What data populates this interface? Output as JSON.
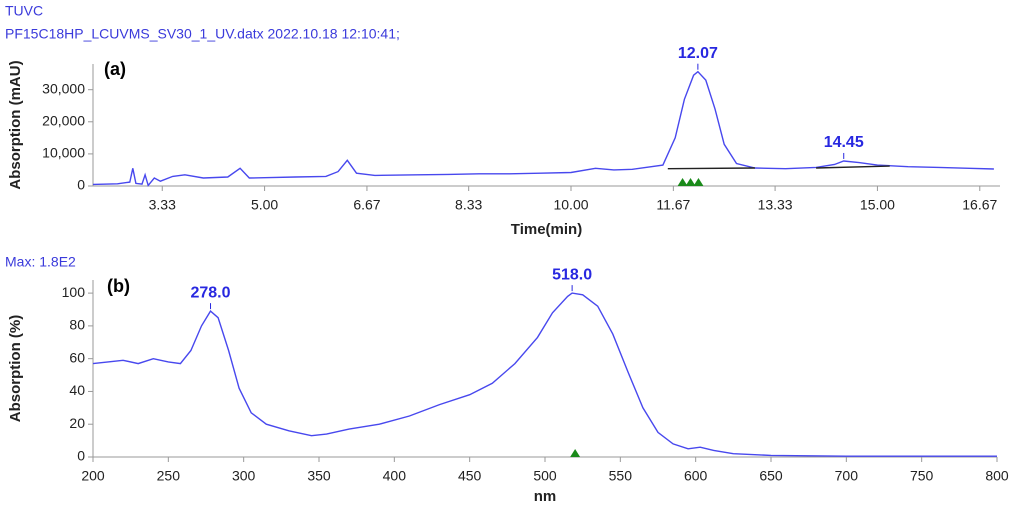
{
  "chart_data": [
    {
      "type": "line",
      "header_lines": [
        "TUVC",
        "PF15C18HP_LCUVMS_SV30_1_UV.datx 2022.10.18 12:10:41;"
      ],
      "panel_label": "(a)",
      "xlabel": "Time(min)",
      "ylabel": "Absorption (mAU)",
      "xlim": [
        2.2,
        17.0
      ],
      "ylim": [
        0,
        38000
      ],
      "xticks": [
        3.33,
        {
          "value": 5,
          "label": "5.00"
        },
        6.67,
        8.33,
        {
          "value": 10,
          "label": "10.00"
        },
        11.67,
        13.33,
        {
          "value": 15,
          "label": "15.00"
        },
        16.67
      ],
      "yticks": [
        0,
        {
          "value": 10000,
          "label": "10,000"
        },
        {
          "value": 20000,
          "label": "20,000"
        },
        {
          "value": 30000,
          "label": "30,000"
        }
      ],
      "series": [
        {
          "color": "#4848ee",
          "x": [
            2.2,
            2.6,
            2.8,
            2.85,
            2.9,
            3.0,
            3.05,
            3.1,
            3.2,
            3.3,
            3.5,
            3.7,
            4.0,
            4.4,
            4.6,
            4.75,
            5.0,
            5.5,
            6.0,
            6.2,
            6.35,
            6.5,
            6.8,
            7.5,
            8.0,
            8.5,
            9.0,
            9.5,
            10.0,
            10.4,
            10.7,
            11.0,
            11.5,
            11.7,
            11.85,
            12.0,
            12.07,
            12.2,
            12.35,
            12.5,
            12.7,
            13.0,
            13.5,
            14.0,
            14.3,
            14.45,
            14.7,
            15.0,
            15.5,
            16.0,
            16.5,
            16.9
          ],
          "values": [
            500,
            700,
            1200,
            5500,
            800,
            600,
            3500,
            200,
            2500,
            1500,
            3000,
            3500,
            2500,
            2800,
            5500,
            2500,
            2600,
            2800,
            3000,
            4500,
            8000,
            4000,
            3300,
            3500,
            3600,
            3800,
            3800,
            4000,
            4200,
            5500,
            5000,
            5200,
            6500,
            15000,
            27000,
            34500,
            35600,
            33000,
            24000,
            13000,
            7000,
            5600,
            5400,
            5800,
            6700,
            7800,
            7300,
            6500,
            6000,
            5800,
            5500,
            5300
          ]
        },
        {
          "color": "#222222",
          "x": [
            11.58,
            13.0
          ],
          "values": [
            5400,
            5600
          ]
        },
        {
          "color": "#222222",
          "x": [
            14.0,
            15.2
          ],
          "values": [
            5600,
            6200
          ]
        }
      ],
      "peak_labels": [
        {
          "x": 12.07,
          "y": 35600
        },
        {
          "x": 14.45,
          "y": 7800
        }
      ],
      "markers": [
        11.82,
        11.95,
        12.08
      ],
      "marker_color": "#1a8a1a"
    },
    {
      "type": "line",
      "header_lines": [
        "Max: 1.8E2"
      ],
      "panel_label": "(b)",
      "xlabel": "nm",
      "ylabel": "Absorption (%)",
      "xlim": [
        200,
        800
      ],
      "ylim": [
        0,
        108
      ],
      "xticks": [
        200,
        250,
        300,
        350,
        400,
        450,
        500,
        550,
        600,
        650,
        700,
        750,
        800
      ],
      "yticks": [
        0,
        20,
        40,
        60,
        80,
        100
      ],
      "series": [
        {
          "color": "#4848ee",
          "x": [
            200,
            210,
            220,
            230,
            240,
            250,
            258,
            265,
            272,
            278,
            283,
            290,
            297,
            305,
            315,
            330,
            345,
            355,
            370,
            390,
            410,
            430,
            450,
            465,
            480,
            495,
            505,
            515,
            518,
            525,
            535,
            545,
            555,
            565,
            575,
            585,
            595,
            603,
            612,
            625,
            650,
            700,
            800
          ],
          "values": [
            57,
            58,
            59,
            57,
            60,
            58,
            57,
            65,
            80,
            89,
            85,
            65,
            42,
            27,
            20,
            16,
            13,
            14,
            17,
            20,
            25,
            32,
            38,
            45,
            57,
            73,
            88,
            98,
            100,
            99,
            92,
            75,
            52,
            30,
            15,
            8,
            5,
            6,
            4,
            2,
            1,
            0.5,
            0.5
          ]
        }
      ],
      "peak_labels": [
        {
          "x": 278,
          "y": 89,
          "label": "278.0"
        },
        {
          "x": 518,
          "y": 100,
          "label": "518.0"
        }
      ],
      "markers": [
        520
      ],
      "marker_color": "#1a8a1a"
    }
  ]
}
